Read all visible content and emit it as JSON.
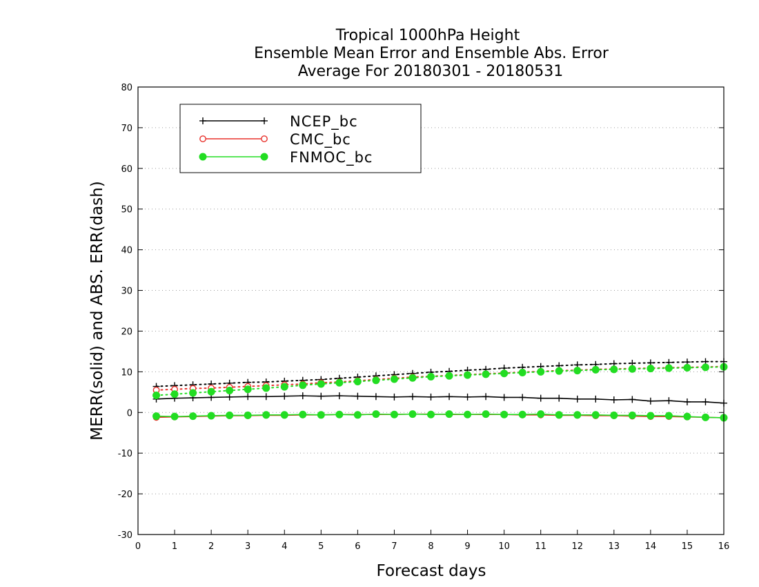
{
  "chart_data": {
    "type": "line",
    "title_lines": [
      "Tropical 1000hPa Height",
      "Ensemble Mean Error and Ensemble Abs. Error",
      "Average For 20180301 - 20180531"
    ],
    "xlabel": "Forecast days",
    "ylabel": "MERR(solid) and ABS. ERR(dash)",
    "xlim": [
      0,
      16
    ],
    "ylim": [
      -30,
      80
    ],
    "x_ticks": [
      "0",
      "1",
      "2",
      "3",
      "4",
      "5",
      "6",
      "7",
      "8",
      "9",
      "10",
      "11",
      "12",
      "13",
      "14",
      "15",
      "16"
    ],
    "y_ticks": [
      "-30",
      "-20",
      "-10",
      "0",
      "10",
      "20",
      "30",
      "40",
      "50",
      "60",
      "70",
      "80"
    ],
    "grid": "horizontal dotted",
    "legend_position": "top-left",
    "x": [
      0.5,
      1,
      1.5,
      2,
      2.5,
      3,
      3.5,
      4,
      4.5,
      5,
      5.5,
      6,
      6.5,
      7,
      7.5,
      8,
      8.5,
      9,
      9.5,
      10,
      10.5,
      11,
      11.5,
      12,
      12.5,
      13,
      13.5,
      14,
      14.5,
      15,
      15.5,
      16
    ],
    "series": [
      {
        "name": "NCEP_bc",
        "color": "#000000",
        "marker": "plus",
        "merr": [
          3.3,
          3.5,
          3.6,
          3.7,
          3.8,
          3.9,
          3.9,
          4.0,
          4.1,
          4.0,
          4.1,
          4.0,
          3.9,
          3.8,
          3.9,
          3.8,
          3.9,
          3.8,
          3.9,
          3.7,
          3.7,
          3.5,
          3.5,
          3.3,
          3.3,
          3.1,
          3.2,
          2.8,
          2.9,
          2.6,
          2.6,
          2.3
        ],
        "abs_err": [
          6.4,
          6.6,
          6.8,
          7.0,
          7.2,
          7.4,
          7.5,
          7.7,
          7.9,
          8.1,
          8.4,
          8.7,
          9.0,
          9.3,
          9.6,
          9.9,
          10.1,
          10.4,
          10.6,
          10.9,
          11.1,
          11.3,
          11.5,
          11.7,
          11.8,
          12.0,
          12.1,
          12.2,
          12.3,
          12.4,
          12.5,
          12.5
        ]
      },
      {
        "name": "CMC_bc",
        "color": "#e8302a",
        "marker": "open-circle",
        "merr": [
          -1.2,
          -1.1,
          -1.0,
          -0.9,
          -0.8,
          -0.8,
          -0.7,
          -0.7,
          -0.6,
          -0.6,
          -0.5,
          -0.5,
          -0.5,
          -0.5,
          -0.4,
          -0.4,
          -0.5,
          -0.5,
          -0.5,
          -0.5,
          -0.6,
          -0.6,
          -0.7,
          -0.7,
          -0.8,
          -0.8,
          -0.9,
          -1.0,
          -1.0,
          -1.1,
          -1.2,
          -1.3
        ],
        "abs_err": [
          5.5,
          5.7,
          5.9,
          6.0,
          6.2,
          6.4,
          6.6,
          6.8,
          7.0,
          7.3,
          7.5,
          7.8,
          8.1,
          8.4,
          8.7,
          8.9,
          9.1,
          9.3,
          9.5,
          9.7,
          9.9,
          10.1,
          10.3,
          10.4,
          10.6,
          10.7,
          10.8,
          10.9,
          11.0,
          11.1,
          11.2,
          11.3
        ]
      },
      {
        "name": "FNMOC_bc",
        "color": "#22dd22",
        "marker": "filled-circle",
        "merr": [
          -0.9,
          -1.0,
          -0.9,
          -0.8,
          -0.7,
          -0.7,
          -0.6,
          -0.6,
          -0.5,
          -0.6,
          -0.5,
          -0.6,
          -0.4,
          -0.5,
          -0.4,
          -0.5,
          -0.4,
          -0.5,
          -0.4,
          -0.5,
          -0.5,
          -0.4,
          -0.6,
          -0.6,
          -0.6,
          -0.7,
          -0.7,
          -0.8,
          -0.8,
          -1.0,
          -1.2,
          -1.3
        ],
        "abs_err": [
          4.2,
          4.5,
          4.8,
          5.1,
          5.4,
          5.7,
          6.0,
          6.3,
          6.7,
          7.0,
          7.3,
          7.6,
          7.9,
          8.2,
          8.5,
          8.8,
          9.0,
          9.2,
          9.4,
          9.6,
          9.8,
          10.0,
          10.2,
          10.3,
          10.5,
          10.6,
          10.7,
          10.8,
          10.9,
          11.0,
          11.1,
          11.2
        ]
      }
    ]
  }
}
